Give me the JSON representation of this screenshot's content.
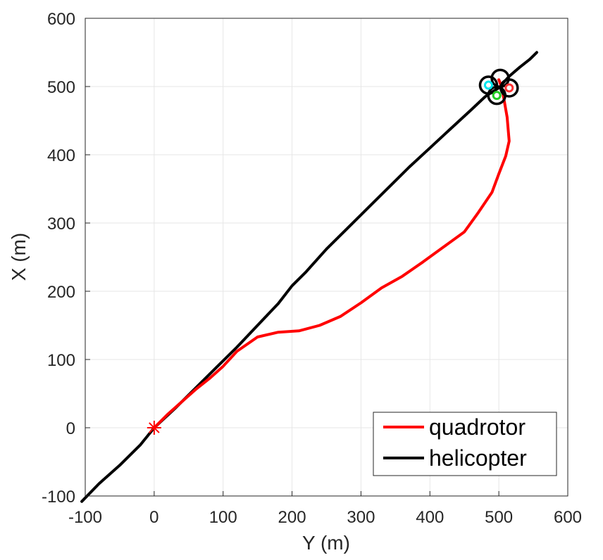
{
  "chart_data": {
    "type": "line",
    "title": "",
    "xlabel": "Y (m)",
    "ylabel": "X (m)",
    "xlim": [
      -100,
      600
    ],
    "ylim": [
      -100,
      600
    ],
    "xticks": [
      -100,
      0,
      100,
      200,
      300,
      400,
      500,
      600
    ],
    "yticks": [
      -100,
      0,
      100,
      200,
      300,
      400,
      500,
      600
    ],
    "xtick_labels": [
      "-100",
      "0",
      "100",
      "200",
      "300",
      "400",
      "500",
      "600"
    ],
    "ytick_labels": [
      "-100",
      "0",
      "100",
      "200",
      "300",
      "400",
      "500",
      "600"
    ],
    "grid": true,
    "legend_position": "bottom-right",
    "series": [
      {
        "name": "quadrotor",
        "color": "#ff0000",
        "x": [
          0,
          20,
          40,
          60,
          80,
          100,
          120,
          150,
          180,
          210,
          240,
          270,
          300,
          330,
          360,
          390,
          420,
          450,
          470,
          490,
          500,
          510,
          515,
          512,
          508,
          505,
          502,
          500
        ],
        "y": [
          0,
          20,
          38,
          56,
          72,
          90,
          112,
          133,
          140,
          142,
          150,
          163,
          183,
          205,
          222,
          243,
          265,
          287,
          315,
          345,
          372,
          398,
          420,
          455,
          478,
          495,
          505,
          510
        ]
      },
      {
        "name": "helicopter",
        "color": "#000000",
        "x": [
          -105,
          -80,
          -50,
          -20,
          0,
          30,
          60,
          90,
          120,
          150,
          180,
          200,
          220,
          250,
          280,
          310,
          340,
          370,
          400,
          430,
          460,
          480,
          490,
          500,
          515,
          530,
          545,
          555
        ],
        "y": [
          -108,
          -82,
          -55,
          -25,
          0,
          28,
          58,
          88,
          118,
          150,
          182,
          208,
          228,
          262,
          292,
          322,
          352,
          382,
          410,
          438,
          466,
          485,
          492,
          498,
          515,
          528,
          540,
          550
        ]
      }
    ],
    "markers": [
      {
        "type": "asterisk",
        "color": "#ff0000",
        "x": 0,
        "y": 0
      },
      {
        "type": "circle-outline",
        "color": "#000000",
        "x": 485,
        "y": 502
      },
      {
        "type": "circle-outline",
        "color": "#000000",
        "x": 502,
        "y": 512
      },
      {
        "type": "circle-outline",
        "color": "#000000",
        "x": 515,
        "y": 498
      },
      {
        "type": "circle-outline",
        "color": "#000000",
        "x": 497,
        "y": 487
      },
      {
        "type": "dot",
        "color": "#00e5ee",
        "x": 485,
        "y": 502
      },
      {
        "type": "dot",
        "color": "#22cc22",
        "x": 497,
        "y": 487
      },
      {
        "type": "dot",
        "color": "#ff3333",
        "x": 515,
        "y": 498
      }
    ]
  }
}
